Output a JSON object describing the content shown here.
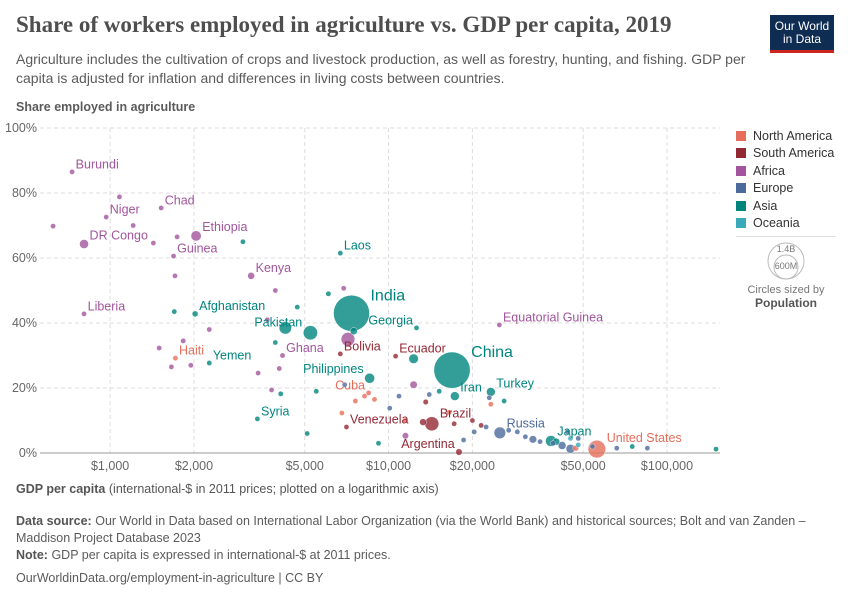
{
  "header": {
    "title": "Share of workers employed in agriculture vs. GDP per capita, 2019",
    "subtitle": "Agriculture includes the cultivation of crops and livestock production, as well as forestry, hunting, and fishing. GDP per capita is adjusted for inflation and differences in living costs between countries.",
    "logo": "Our World in Data"
  },
  "legend": {
    "items": [
      {
        "label": "North America",
        "color": "#E56E5A"
      },
      {
        "label": "South America",
        "color": "#932834"
      },
      {
        "label": "Africa",
        "color": "#A2559C"
      },
      {
        "label": "Europe",
        "color": "#4C6A9C"
      },
      {
        "label": "Asia",
        "color": "#00847E"
      },
      {
        "label": "Oceania",
        "color": "#38AABA"
      }
    ],
    "size_big": "1.4B",
    "size_small": "600M",
    "size_caption": "Circles sized by",
    "size_var": "Population"
  },
  "footer": {
    "source_label": "Data source:",
    "source": "Our World in Data based on International Labor Organization (via the World Bank) and historical sources; Bolt and van Zanden – Maddison Project Database 2023",
    "note_label": "Note:",
    "note": "GDP per capita is expressed in international-$ at 2011 prices.",
    "url": "OurWorldinData.org/employment-in-agriculture | CC BY"
  },
  "chart_data": {
    "type": "scatter",
    "title": "Share of workers employed in agriculture vs. GDP per capita, 2019",
    "ylabel": "Share employed in agriculture",
    "xlabel": "GDP per capita",
    "xlabel_note": "(international-$ in 2011 prices; plotted on a logarithmic axis)",
    "x_scale": "log",
    "xlim": [
      560,
      155000
    ],
    "ylim": [
      0,
      100
    ],
    "x_ticks": [
      {
        "v": 1000,
        "l": "$1,000"
      },
      {
        "v": 2000,
        "l": "$2,000"
      },
      {
        "v": 5000,
        "l": "$5,000"
      },
      {
        "v": 10000,
        "l": "$10,000"
      },
      {
        "v": 20000,
        "l": "$20,000"
      },
      {
        "v": 50000,
        "l": "$50,000"
      },
      {
        "v": 100000,
        "l": "$100,000"
      }
    ],
    "y_ticks": [
      {
        "v": 0,
        "l": "0%"
      },
      {
        "v": 20,
        "l": "20%"
      },
      {
        "v": 40,
        "l": "40%"
      },
      {
        "v": 60,
        "l": "60%"
      },
      {
        "v": 80,
        "l": "80%"
      },
      {
        "v": 100,
        "l": "100%"
      }
    ],
    "grid": true,
    "legend_placement": "right",
    "points": [
      {
        "name": "Burundi",
        "gdp": 730,
        "share": 86.5,
        "region": "Africa",
        "pop": 12
      },
      {
        "name": "Chad",
        "gdp": 1525,
        "share": 75.4,
        "region": "Africa",
        "pop": 16
      },
      {
        "name": "Niger",
        "gdp": 968,
        "share": 72.6,
        "region": "Africa",
        "pop": 23
      },
      {
        "name": "Ethiopia",
        "gdp": 2036,
        "share": 66.8,
        "region": "Africa",
        "pop": 112
      },
      {
        "name": "DR Congo",
        "gdp": 806,
        "share": 64.3,
        "region": "Africa",
        "pop": 87
      },
      {
        "name": "Guinea",
        "gdp": 1690,
        "share": 60.6,
        "region": "Africa",
        "pop": 13
      },
      {
        "name": "Laos",
        "gdp": 6710,
        "share": 61.5,
        "region": "Asia",
        "pop": 7
      },
      {
        "name": "Kenya",
        "gdp": 3210,
        "share": 54.5,
        "region": "Africa",
        "pop": 52
      },
      {
        "name": "India",
        "gdp": 7360,
        "share": 43,
        "region": "Asia",
        "pop": 1380
      },
      {
        "name": "Liberia",
        "gdp": 806,
        "share": 42.8,
        "region": "Africa",
        "pop": 5
      },
      {
        "name": "Afghanistan",
        "gdp": 2020,
        "share": 42.8,
        "region": "Asia",
        "pop": 38
      },
      {
        "name": "Pakistan",
        "gdp": 5240,
        "share": 37,
        "region": "Asia",
        "pop": 217
      },
      {
        "name": "Georgia",
        "gdp": 12600,
        "share": 38.5,
        "region": "Asia",
        "pop": 4
      },
      {
        "name": "Equatorial Guinea",
        "gdp": 25000,
        "share": 39.4,
        "region": "Africa",
        "pop": 1.4
      },
      {
        "name": "Ghana",
        "gdp": 4160,
        "share": 30,
        "region": "Africa",
        "pop": 30
      },
      {
        "name": "Haiti",
        "gdp": 1716,
        "share": 29.2,
        "region": "North America",
        "pop": 11
      },
      {
        "name": "Yemen",
        "gdp": 2270,
        "share": 27.7,
        "region": "Asia",
        "pop": 29
      },
      {
        "name": "Bolivia",
        "gdp": 6710,
        "share": 30.5,
        "region": "South America",
        "pop": 11
      },
      {
        "name": "Ecuador",
        "gdp": 10600,
        "share": 29.8,
        "region": "South America",
        "pop": 17
      },
      {
        "name": "China",
        "gdp": 16900,
        "share": 25.5,
        "region": "Asia",
        "pop": 1400
      },
      {
        "name": "Philippines",
        "gdp": 8550,
        "share": 23,
        "region": "Asia",
        "pop": 108
      },
      {
        "name": "Cuba",
        "gdp": 8480,
        "share": 18.5,
        "region": "North America",
        "pop": 11
      },
      {
        "name": "Iran",
        "gdp": 17300,
        "share": 17.5,
        "region": "Asia",
        "pop": 83
      },
      {
        "name": "Turkey",
        "gdp": 23300,
        "share": 18.8,
        "region": "Asia",
        "pop": 83
      },
      {
        "name": "Syria",
        "gdp": 3380,
        "share": 10.5,
        "region": "Asia",
        "pop": 17
      },
      {
        "name": "Venezuela",
        "gdp": 7060,
        "share": 8,
        "region": "South America",
        "pop": 28
      },
      {
        "name": "Brazil",
        "gdp": 14300,
        "share": 9,
        "region": "South America",
        "pop": 211
      },
      {
        "name": "Russia",
        "gdp": 25100,
        "share": 6.2,
        "region": "Europe",
        "pop": 145
      },
      {
        "name": "Argentina",
        "gdp": 17900,
        "share": 0.3,
        "region": "South America",
        "pop": 45
      },
      {
        "name": "Japan",
        "gdp": 38300,
        "share": 3.7,
        "region": "Asia",
        "pop": 126
      },
      {
        "name": "United States",
        "gdp": 56000,
        "share": 1.2,
        "region": "North America",
        "pop": 330
      },
      {
        "gdp": 7150,
        "share": 35,
        "region": "Africa",
        "pop": 200
      },
      {
        "gdp": 4260,
        "share": 38.5,
        "region": "Asia",
        "pop": 165
      },
      {
        "gdp": 12300,
        "share": 29,
        "region": "Asia",
        "pop": 97
      },
      {
        "gdp": 6080,
        "share": 49,
        "region": "Asia",
        "pop": 30
      },
      {
        "gdp": 7500,
        "share": 37.5,
        "region": "Asia",
        "pop": 55
      },
      {
        "gdp": 12300,
        "share": 21,
        "region": "Africa",
        "pop": 58
      },
      {
        "gdp": 11500,
        "share": 5.3,
        "region": "Africa",
        "pop": 44
      },
      {
        "gdp": 13600,
        "share": 15.7,
        "region": "South America",
        "pop": 32
      },
      {
        "gdp": 13300,
        "share": 9.5,
        "region": "South America",
        "pop": 50
      },
      {
        "gdp": 33000,
        "share": 4.2,
        "region": "Europe",
        "pop": 60
      },
      {
        "gdp": 42000,
        "share": 2.3,
        "region": "Europe",
        "pop": 67
      },
      {
        "gdp": 45000,
        "share": 1.3,
        "region": "Europe",
        "pop": 83
      },
      {
        "gdp": 40000,
        "share": 3.5,
        "region": "Asia",
        "pop": 52
      },
      {
        "gdp": 624,
        "share": 69.8,
        "region": "Africa",
        "pop": 19
      },
      {
        "gdp": 1080,
        "share": 78.8,
        "region": "Africa",
        "pop": 5
      },
      {
        "gdp": 1210,
        "share": 70,
        "region": "Africa",
        "pop": 14
      },
      {
        "gdp": 1430,
        "share": 64.6,
        "region": "Africa",
        "pop": 10
      },
      {
        "gdp": 1740,
        "share": 66.5,
        "region": "Africa",
        "pop": 6
      },
      {
        "gdp": 1710,
        "share": 54.5,
        "region": "Africa",
        "pop": 8
      },
      {
        "gdp": 1500,
        "share": 32.3,
        "region": "Africa",
        "pop": 8
      },
      {
        "gdp": 1830,
        "share": 34.5,
        "region": "Africa",
        "pop": 8
      },
      {
        "gdp": 1660,
        "share": 26.5,
        "region": "Africa",
        "pop": 12
      },
      {
        "gdp": 1950,
        "share": 27,
        "region": "Africa",
        "pop": 8
      },
      {
        "gdp": 2270,
        "share": 38,
        "region": "Africa",
        "pop": 6
      },
      {
        "gdp": 3670,
        "share": 41,
        "region": "Africa",
        "pop": 20
      },
      {
        "gdp": 3920,
        "share": 50,
        "region": "Africa",
        "pop": 5
      },
      {
        "gdp": 4050,
        "share": 26,
        "region": "Africa",
        "pop": 26
      },
      {
        "gdp": 3400,
        "share": 24.6,
        "region": "Africa",
        "pop": 6
      },
      {
        "gdp": 3800,
        "share": 19.4,
        "region": "Africa",
        "pop": 5
      },
      {
        "gdp": 6900,
        "share": 50.7,
        "region": "Africa",
        "pop": 6
      },
      {
        "gdp": 3000,
        "share": 65,
        "region": "Asia",
        "pop": 8
      },
      {
        "gdp": 1700,
        "share": 43.5,
        "region": "Asia",
        "pop": 7
      },
      {
        "gdp": 4100,
        "share": 18.2,
        "region": "Asia",
        "pop": 3
      },
      {
        "gdp": 4700,
        "share": 44.9,
        "region": "Asia",
        "pop": 3
      },
      {
        "gdp": 3920,
        "share": 34,
        "region": "Asia",
        "pop": 5
      },
      {
        "gdp": 5100,
        "share": 6,
        "region": "Asia",
        "pop": 4
      },
      {
        "gdp": 9200,
        "share": 3,
        "region": "Asia",
        "pop": 4
      },
      {
        "gdp": 15200,
        "share": 19,
        "region": "Asia",
        "pop": 10
      },
      {
        "gdp": 26000,
        "share": 16,
        "region": "Asia",
        "pop": 4
      },
      {
        "gdp": 5500,
        "share": 19,
        "region": "Asia",
        "pop": 3
      },
      {
        "gdp": 6960,
        "share": 21,
        "region": "Europe",
        "pop": 3
      },
      {
        "gdp": 10900,
        "share": 17.5,
        "region": "Europe",
        "pop": 3
      },
      {
        "gdp": 10100,
        "share": 13.8,
        "region": "Europe",
        "pop": 9
      },
      {
        "gdp": 14000,
        "share": 18,
        "region": "Europe",
        "pop": 3
      },
      {
        "gdp": 18600,
        "share": 4,
        "region": "Europe",
        "pop": 4
      },
      {
        "gdp": 20300,
        "share": 6.5,
        "region": "Europe",
        "pop": 4
      },
      {
        "gdp": 23000,
        "share": 17,
        "region": "Europe",
        "pop": 3
      },
      {
        "gdp": 22400,
        "share": 8,
        "region": "Europe",
        "pop": 4
      },
      {
        "gdp": 27000,
        "share": 7,
        "region": "Europe",
        "pop": 5
      },
      {
        "gdp": 29000,
        "share": 6.5,
        "region": "Europe",
        "pop": 4
      },
      {
        "gdp": 31000,
        "share": 5,
        "region": "Europe",
        "pop": 10
      },
      {
        "gdp": 35000,
        "share": 3.5,
        "region": "Europe",
        "pop": 5
      },
      {
        "gdp": 39000,
        "share": 3,
        "region": "Europe",
        "pop": 5
      },
      {
        "gdp": 44000,
        "share": 6.5,
        "region": "Europe",
        "pop": 5
      },
      {
        "gdp": 48000,
        "share": 4.5,
        "region": "Europe",
        "pop": 5
      },
      {
        "gdp": 54000,
        "share": 2,
        "region": "Europe",
        "pop": 9
      },
      {
        "gdp": 66000,
        "share": 1.5,
        "region": "Europe",
        "pop": 5
      },
      {
        "gdp": 85000,
        "share": 1.5,
        "region": "Europe",
        "pop": 5
      },
      {
        "gdp": 7600,
        "share": 16,
        "region": "North America",
        "pop": 4
      },
      {
        "gdp": 8200,
        "share": 17.5,
        "region": "North America",
        "pop": 5
      },
      {
        "gdp": 6800,
        "share": 12.3,
        "region": "North America",
        "pop": 4
      },
      {
        "gdp": 8900,
        "share": 16.5,
        "region": "North America",
        "pop": 6
      },
      {
        "gdp": 11500,
        "share": 10,
        "region": "North America",
        "pop": 5
      },
      {
        "gdp": 16500,
        "share": 12.5,
        "region": "North America",
        "pop": 4
      },
      {
        "gdp": 23300,
        "share": 15,
        "region": "North America",
        "pop": 4
      },
      {
        "gdp": 47000,
        "share": 1.5,
        "region": "North America",
        "pop": 38
      },
      {
        "gdp": 20000,
        "share": 10,
        "region": "South America",
        "pop": 4
      },
      {
        "gdp": 21500,
        "share": 8.5,
        "region": "South America",
        "pop": 4
      },
      {
        "gdp": 17200,
        "share": 9,
        "region": "South America",
        "pop": 3
      },
      {
        "gdp": 45000,
        "share": 4.5,
        "region": "Oceania",
        "pop": 4
      },
      {
        "gdp": 48000,
        "share": 2.5,
        "region": "Oceania",
        "pop": 25
      },
      {
        "gdp": 75000,
        "share": 2,
        "region": "Asia",
        "pop": 5
      },
      {
        "gdp": 150000,
        "share": 1.2,
        "region": "Asia",
        "pop": 3
      }
    ],
    "label_left": [
      "Ghana",
      "Cuba",
      "Venezuela",
      "Argentina",
      "Brazil",
      "Ecuador",
      "Philippines",
      "Pakistan",
      "Georgia"
    ]
  }
}
